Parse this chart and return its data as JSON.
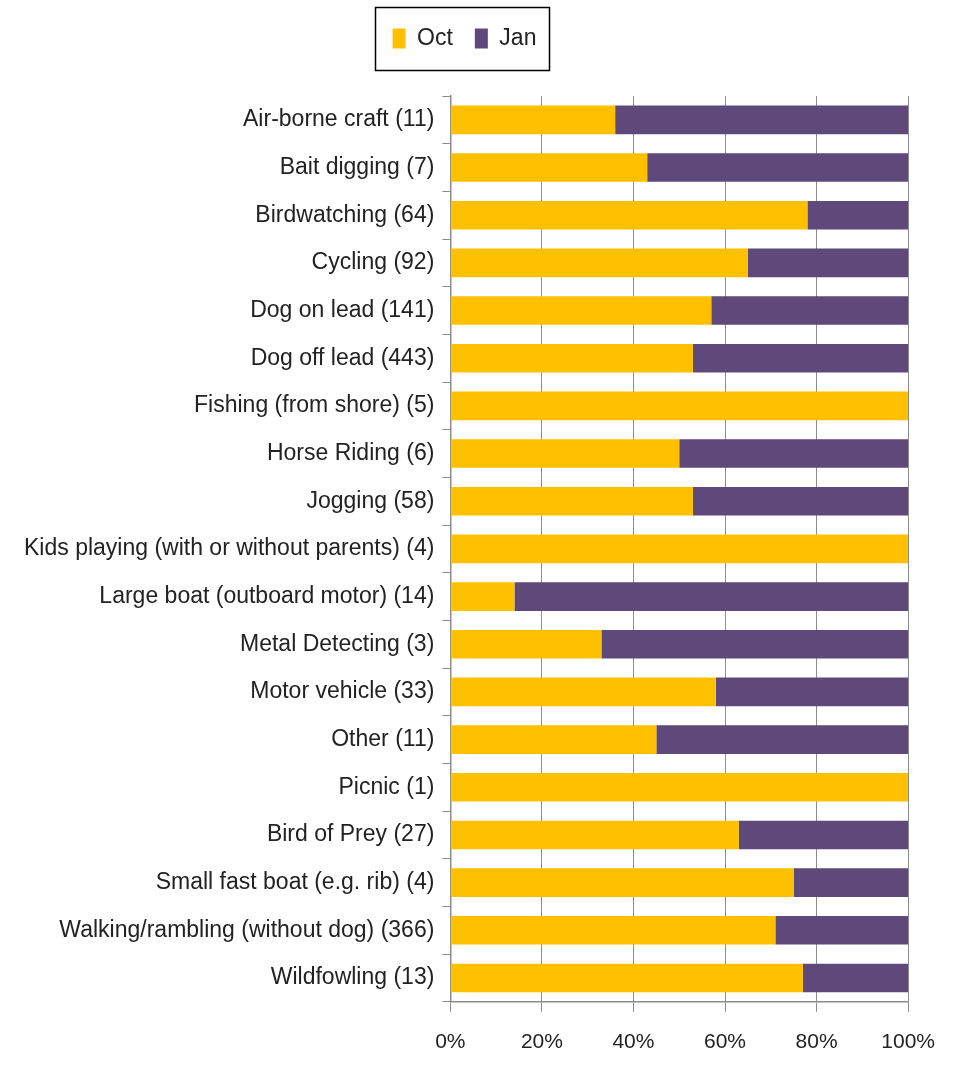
{
  "chart_data": {
    "type": "bar",
    "orientation": "horizontal",
    "stacked": true,
    "categories": [
      "Air-borne craft (11)",
      "Bait digging (7)",
      "Birdwatching (64)",
      "Cycling (92)",
      "Dog on lead (141)",
      "Dog off lead (443)",
      "Fishing (from shore) (5)",
      "Horse Riding (6)",
      "Jogging (58)",
      "Kids playing (with or without parents) (4)",
      "Large boat (outboard motor) (14)",
      "Metal Detecting (3)",
      "Motor vehicle (33)",
      "Other (11)",
      "Picnic (1)",
      "Bird of Prey (27)",
      "Small fast boat (e.g. rib) (4)",
      "Walking/rambling (without dog) (366)",
      "Wildfowling (13)"
    ],
    "series": [
      {
        "name": "Oct",
        "color": "#ffc000",
        "values": [
          36,
          43,
          78,
          65,
          57,
          53,
          100,
          50,
          53,
          100,
          14,
          33,
          58,
          45,
          100,
          63,
          75,
          71,
          77
        ]
      },
      {
        "name": "Jan",
        "color": "#5f497a",
        "values": [
          64,
          57,
          22,
          35,
          43,
          47,
          0,
          50,
          47,
          0,
          86,
          67,
          42,
          55,
          0,
          37,
          25,
          29,
          23
        ]
      }
    ],
    "xlim": [
      0,
      100
    ],
    "xticks": [
      {
        "value": 0,
        "label": "0%"
      },
      {
        "value": 20,
        "label": "20%"
      },
      {
        "value": 40,
        "label": "40%"
      },
      {
        "value": 60,
        "label": "60%"
      },
      {
        "value": 80,
        "label": "80%"
      },
      {
        "value": 100,
        "label": "100%"
      }
    ],
    "grid": "x",
    "legend": "top"
  }
}
